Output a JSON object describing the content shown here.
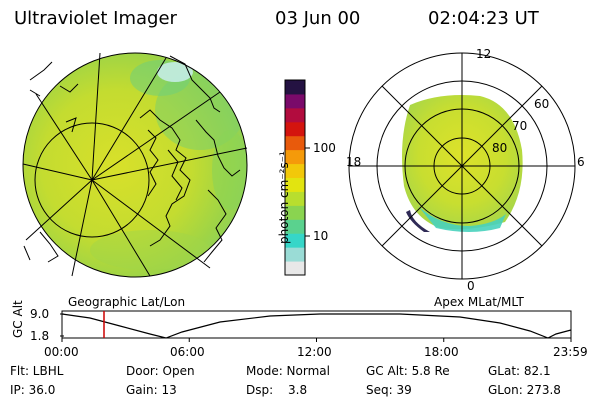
{
  "header": {
    "title": "Ultraviolet Imager",
    "date": "03 Jun 00",
    "time": "02:04:23 UT"
  },
  "left_panel": {
    "label": "Geographic Lat/Lon"
  },
  "right_panel": {
    "label": "Apex MLat/MLT",
    "lat_labels": [
      "60",
      "70",
      "80"
    ],
    "mlt_labels": [
      "12",
      "18",
      "6",
      "0"
    ]
  },
  "colorbar": {
    "unit_label": "photon cm⁻²s⁻¹",
    "tick_labels": [
      "100",
      "10"
    ],
    "colors_bottom_to_top": [
      "#e8e8e8",
      "#9adcd6",
      "#36d6c8",
      "#5ad28e",
      "#8ad450",
      "#b8de2e",
      "#e2e410",
      "#f2c80a",
      "#f59a0a",
      "#e85a0c",
      "#d4140e",
      "#b20c3e",
      "#7a0a6a",
      "#241242"
    ]
  },
  "timeline": {
    "ylabel": "GC Alt",
    "y_ticks": [
      "9.0",
      "1.8"
    ],
    "x_ticks": [
      "00:00",
      "06:00",
      "12:00",
      "18:00",
      "23:59"
    ],
    "marker_color": "#cc0000",
    "marker_time": "02:04"
  },
  "info": {
    "row1": [
      "Flt: LBHL",
      "Door: Open",
      "Mode: Normal",
      "GC Alt: 5.8 Re",
      "GLat: 82.1"
    ],
    "row2": [
      "IP: 36.0",
      "Gain: 13",
      "Dsp:",
      "3.8",
      "Seq: 39",
      "GLon: 273.8"
    ]
  }
}
